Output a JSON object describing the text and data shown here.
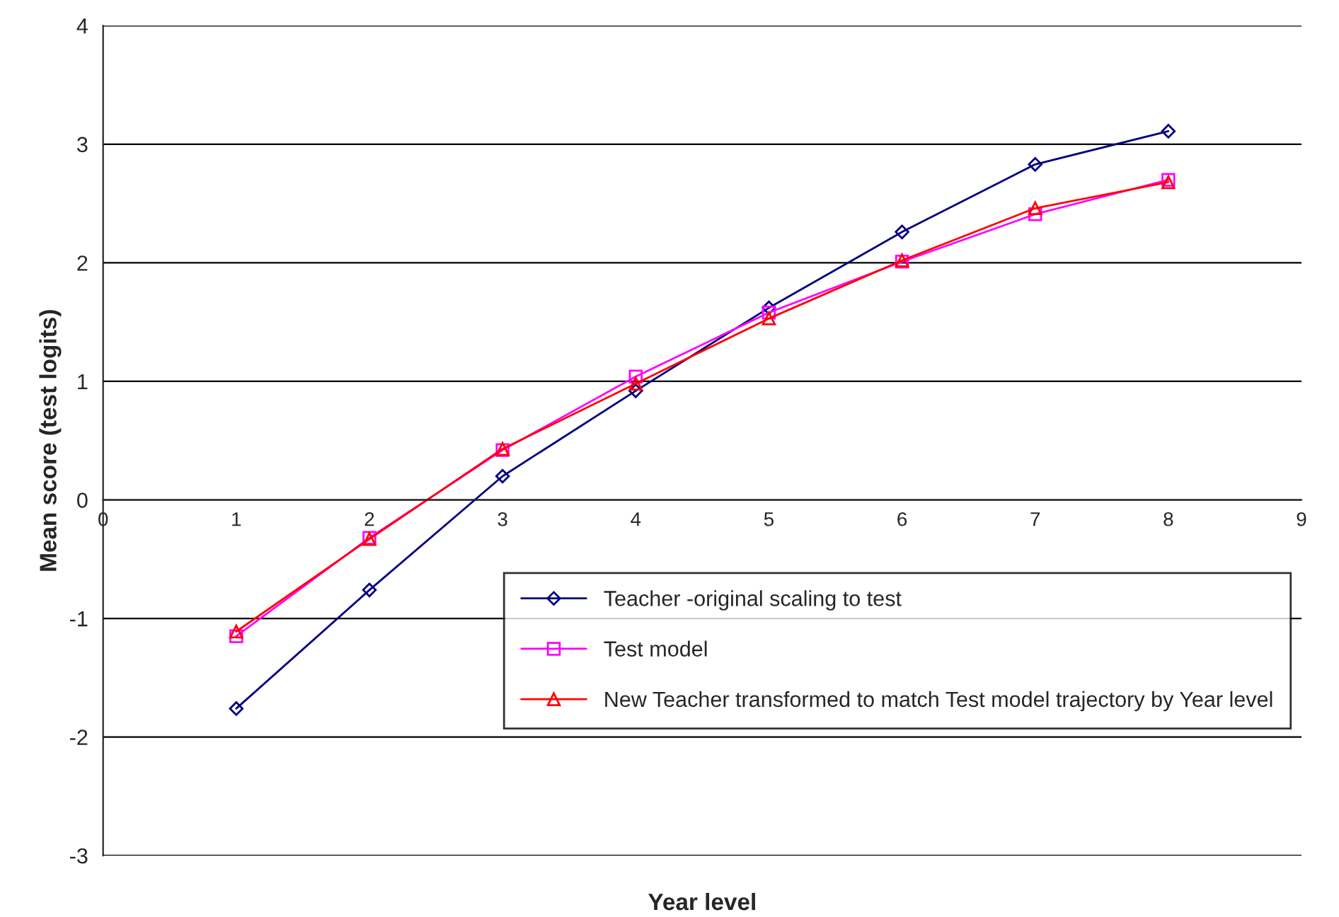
{
  "chart_data": {
    "type": "line",
    "xlabel": "Year level",
    "ylabel": "Mean score (test logits)",
    "x": [
      1,
      2,
      3,
      4,
      5,
      6,
      7,
      8
    ],
    "series": [
      {
        "name": "Teacher -original scaling to test",
        "color": "#000080",
        "marker": "diamond",
        "values": [
          -1.76,
          -0.76,
          0.2,
          0.92,
          1.62,
          2.26,
          2.83,
          3.11
        ]
      },
      {
        "name": "Test model",
        "color": "#ff00ff",
        "marker": "square",
        "values": [
          -1.15,
          -0.32,
          0.42,
          1.04,
          1.58,
          2.01,
          2.41,
          2.7
        ]
      },
      {
        "name": "New Teacher transformed to match Test model trajectory by Year level",
        "color": "#ff0000",
        "marker": "triangle",
        "values": [
          -1.11,
          -0.33,
          0.43,
          0.98,
          1.53,
          2.02,
          2.46,
          2.68
        ]
      }
    ],
    "xlim": [
      0,
      9
    ],
    "xticks": [
      0,
      1,
      2,
      3,
      4,
      5,
      6,
      7,
      8,
      9
    ],
    "ylim": [
      -3,
      4
    ],
    "yticks": [
      -3,
      -2,
      -1,
      0,
      1,
      2,
      3,
      4
    ],
    "grid": "y",
    "legend": "bottom right",
    "line_style": "solid"
  }
}
